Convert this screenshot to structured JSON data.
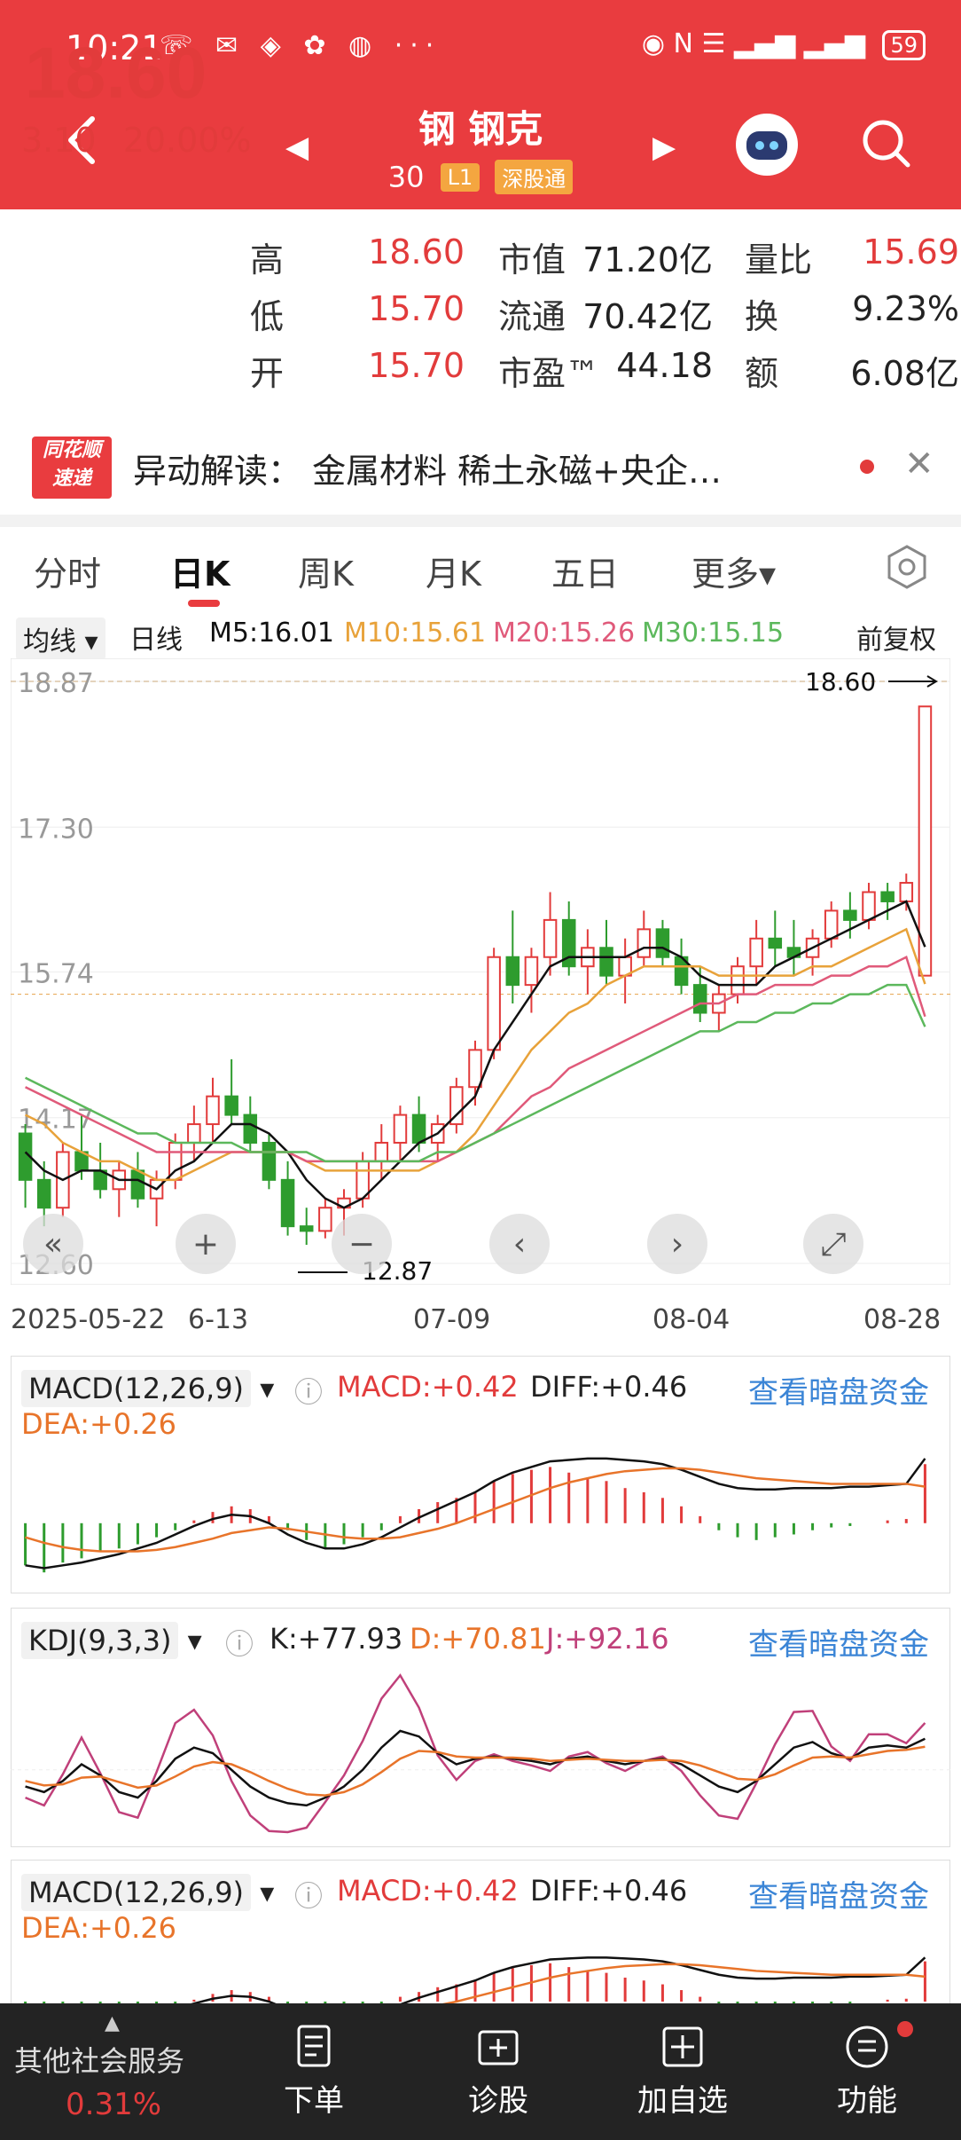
{
  "status": {
    "time": "10:21",
    "icons": "☏ ✉ ◈ ✿ ◍ ···",
    "right_icons": "◉ N ☰ ▂▄▆ ▂▄▆",
    "battery": "59"
  },
  "header": {
    "name": "钢 钢克",
    "code": "30  ",
    "tag1": "L1",
    "tag2": "深股通"
  },
  "quote": {
    "price": "18.60",
    "change": "3.10",
    "change_pct": "20.00%",
    "high_label": "高",
    "high": "18.60",
    "low_label": "低",
    "low": "15.70",
    "open_label": "开",
    "open": "15.70",
    "mcap_label": "市值",
    "mcap": "71.20亿",
    "float_label": "流通",
    "float": "70.42亿",
    "pe_label": "市盈™",
    "pe": "44.18",
    "vr_label": "量比",
    "vr": "15.69",
    "turn_label": "换",
    "turn": "9.23%",
    "amt_label": "额",
    "amt": "6.08亿"
  },
  "news": {
    "logo_l1": "同花顺",
    "logo_l2": "速递",
    "text": "异动解读：  金属材料     稀土永磁+央企…",
    "close": "✕"
  },
  "tabs": [
    "分时",
    "日K",
    "周K",
    "月K",
    "五日",
    "更多▾"
  ],
  "ma": {
    "mode": "均线 ▾",
    "period": "日线",
    "m5": "M5:16.01",
    "m10": "M10:15.61",
    "m20": "M20:15.26",
    "m30": "M30:15.15",
    "adjust": "前复权"
  },
  "chart_data": {
    "type": "candlestick",
    "y_ticks": [
      "18.87",
      "17.30",
      "15.74",
      "14.17",
      "12.60"
    ],
    "x_ticks": [
      "2025-05-22",
      "6-13",
      "07-09",
      "08-04",
      "08-28"
    ],
    "last_label": "18.60",
    "low_label": "12.87",
    "ohlc": [
      [
        14.0,
        14.1,
        13.2,
        13.5
      ],
      [
        13.5,
        13.7,
        13.0,
        13.2
      ],
      [
        13.2,
        13.9,
        13.1,
        13.8
      ],
      [
        13.8,
        14.2,
        13.5,
        13.6
      ],
      [
        13.6,
        13.9,
        13.3,
        13.4
      ],
      [
        13.4,
        13.7,
        13.1,
        13.6
      ],
      [
        13.6,
        13.8,
        13.2,
        13.3
      ],
      [
        13.3,
        13.6,
        13.0,
        13.5
      ],
      [
        13.5,
        14.0,
        13.4,
        13.9
      ],
      [
        13.9,
        14.3,
        13.7,
        14.1
      ],
      [
        14.1,
        14.6,
        13.9,
        14.4
      ],
      [
        14.4,
        14.8,
        14.1,
        14.2
      ],
      [
        14.2,
        14.4,
        13.8,
        13.9
      ],
      [
        13.9,
        14.0,
        13.4,
        13.5
      ],
      [
        13.5,
        13.7,
        12.9,
        13.0
      ],
      [
        13.0,
        13.2,
        12.8,
        12.95
      ],
      [
        12.95,
        13.3,
        12.87,
        13.2
      ],
      [
        13.2,
        13.4,
        12.9,
        13.3
      ],
      [
        13.3,
        13.8,
        13.2,
        13.7
      ],
      [
        13.7,
        14.1,
        13.5,
        13.9
      ],
      [
        13.9,
        14.3,
        13.7,
        14.2
      ],
      [
        14.2,
        14.4,
        13.8,
        13.9
      ],
      [
        13.9,
        14.2,
        13.7,
        14.1
      ],
      [
        14.1,
        14.6,
        14.0,
        14.5
      ],
      [
        14.5,
        15.0,
        14.3,
        14.9
      ],
      [
        14.9,
        16.0,
        14.8,
        15.9
      ],
      [
        15.9,
        16.4,
        15.4,
        15.6
      ],
      [
        15.6,
        16.0,
        15.3,
        15.9
      ],
      [
        15.9,
        16.6,
        15.7,
        16.3
      ],
      [
        16.3,
        16.5,
        15.7,
        15.8
      ],
      [
        15.8,
        16.2,
        15.5,
        16.0
      ],
      [
        16.0,
        16.3,
        15.6,
        15.7
      ],
      [
        15.7,
        16.1,
        15.4,
        15.9
      ],
      [
        15.9,
        16.4,
        15.8,
        16.2
      ],
      [
        16.2,
        16.3,
        15.8,
        15.9
      ],
      [
        15.9,
        16.1,
        15.5,
        15.6
      ],
      [
        15.6,
        15.8,
        15.2,
        15.3
      ],
      [
        15.3,
        15.6,
        15.1,
        15.5
      ],
      [
        15.5,
        15.9,
        15.4,
        15.8
      ],
      [
        15.8,
        16.3,
        15.6,
        16.1
      ],
      [
        16.1,
        16.4,
        15.8,
        16.0
      ],
      [
        16.0,
        16.3,
        15.7,
        15.9
      ],
      [
        15.9,
        16.2,
        15.7,
        16.1
      ],
      [
        16.1,
        16.5,
        16.0,
        16.4
      ],
      [
        16.4,
        16.6,
        16.1,
        16.3
      ],
      [
        16.3,
        16.7,
        16.2,
        16.6
      ],
      [
        16.6,
        16.7,
        16.3,
        16.5
      ],
      [
        16.5,
        16.8,
        16.4,
        16.7
      ],
      [
        15.7,
        18.6,
        15.7,
        18.6
      ]
    ],
    "ma5": [
      13.8,
      13.6,
      13.5,
      13.6,
      13.6,
      13.5,
      13.5,
      13.4,
      13.6,
      13.7,
      13.9,
      14.1,
      14.1,
      14.0,
      13.8,
      13.5,
      13.3,
      13.2,
      13.3,
      13.5,
      13.7,
      13.9,
      14.0,
      14.2,
      14.4,
      14.9,
      15.2,
      15.5,
      15.8,
      15.9,
      15.9,
      15.9,
      15.9,
      16.0,
      16.0,
      15.9,
      15.7,
      15.6,
      15.6,
      15.6,
      15.8,
      15.9,
      16.0,
      16.1,
      16.2,
      16.3,
      16.4,
      16.5,
      16.01
    ],
    "ma10": [
      14.2,
      14.1,
      13.9,
      13.8,
      13.7,
      13.7,
      13.6,
      13.5,
      13.5,
      13.6,
      13.7,
      13.8,
      13.8,
      13.8,
      13.8,
      13.7,
      13.6,
      13.6,
      13.6,
      13.6,
      13.6,
      13.6,
      13.7,
      13.8,
      14.0,
      14.3,
      14.6,
      14.9,
      15.1,
      15.3,
      15.4,
      15.6,
      15.7,
      15.8,
      15.8,
      15.8,
      15.8,
      15.7,
      15.7,
      15.7,
      15.7,
      15.7,
      15.8,
      15.8,
      15.9,
      16.0,
      16.1,
      16.2,
      15.61
    ],
    "ma20": [
      14.5,
      14.4,
      14.3,
      14.2,
      14.1,
      14.0,
      13.9,
      13.8,
      13.8,
      13.8,
      13.8,
      13.8,
      13.8,
      13.8,
      13.8,
      13.7,
      13.7,
      13.7,
      13.7,
      13.7,
      13.7,
      13.7,
      13.7,
      13.8,
      13.9,
      14.0,
      14.2,
      14.4,
      14.5,
      14.7,
      14.8,
      14.9,
      15.0,
      15.1,
      15.2,
      15.3,
      15.4,
      15.4,
      15.5,
      15.5,
      15.6,
      15.6,
      15.6,
      15.7,
      15.7,
      15.8,
      15.8,
      15.9,
      15.26
    ],
    "ma30": [
      14.6,
      14.5,
      14.4,
      14.3,
      14.2,
      14.1,
      14.0,
      14.0,
      13.9,
      13.9,
      13.9,
      13.9,
      13.8,
      13.8,
      13.8,
      13.8,
      13.7,
      13.7,
      13.7,
      13.7,
      13.7,
      13.7,
      13.8,
      13.8,
      13.9,
      14.0,
      14.1,
      14.2,
      14.3,
      14.4,
      14.5,
      14.6,
      14.7,
      14.8,
      14.9,
      15.0,
      15.1,
      15.1,
      15.2,
      15.2,
      15.3,
      15.3,
      15.4,
      15.4,
      15.5,
      15.5,
      15.6,
      15.6,
      15.15
    ],
    "ylim": [
      12.6,
      18.87
    ]
  },
  "macd1": {
    "title": "MACD(12,26,9)",
    "macd": "MACD:+0.42",
    "diff": "DIFF:+0.46",
    "dea": "DEA:+0.26",
    "link": "查看暗盘资金"
  },
  "kdj": {
    "title": "KDJ(9,3,3)",
    "k": "K:+77.93",
    "d": "D:+70.81",
    "j": "J:+92.16",
    "link": "查看暗盘资金"
  },
  "macd2": {
    "title": "MACD(12,26,9)",
    "macd": "MACD:+0.42",
    "diff": "DIFF:+0.46",
    "dea": "DEA:+0.26",
    "link": "查看暗盘资金"
  },
  "macd_series": {
    "hist": [
      -0.3,
      -0.35,
      -0.28,
      -0.25,
      -0.2,
      -0.18,
      -0.15,
      -0.1,
      -0.05,
      0.02,
      0.08,
      0.12,
      0.1,
      0.05,
      -0.05,
      -0.12,
      -0.18,
      -0.15,
      -0.1,
      -0.05,
      0.05,
      0.1,
      0.15,
      0.18,
      0.22,
      0.3,
      0.35,
      0.38,
      0.4,
      0.36,
      0.32,
      0.3,
      0.25,
      0.22,
      0.18,
      0.12,
      0.05,
      -0.05,
      -0.1,
      -0.12,
      -0.1,
      -0.08,
      -0.05,
      -0.03,
      -0.02,
      0.0,
      0.02,
      0.03,
      0.42
    ],
    "diff": [
      -0.3,
      -0.32,
      -0.3,
      -0.28,
      -0.25,
      -0.22,
      -0.18,
      -0.14,
      -0.08,
      -0.02,
      0.03,
      0.06,
      0.05,
      0.0,
      -0.08,
      -0.14,
      -0.18,
      -0.18,
      -0.15,
      -0.1,
      -0.03,
      0.04,
      0.1,
      0.16,
      0.22,
      0.3,
      0.36,
      0.4,
      0.44,
      0.45,
      0.46,
      0.46,
      0.45,
      0.44,
      0.42,
      0.38,
      0.33,
      0.28,
      0.25,
      0.24,
      0.24,
      0.25,
      0.25,
      0.25,
      0.26,
      0.26,
      0.27,
      0.28,
      0.46
    ],
    "dea": [
      -0.1,
      -0.14,
      -0.17,
      -0.19,
      -0.2,
      -0.2,
      -0.2,
      -0.19,
      -0.17,
      -0.14,
      -0.11,
      -0.07,
      -0.05,
      -0.03,
      -0.04,
      -0.06,
      -0.08,
      -0.1,
      -0.11,
      -0.11,
      -0.1,
      -0.07,
      -0.04,
      0.0,
      0.05,
      0.1,
      0.15,
      0.2,
      0.25,
      0.29,
      0.32,
      0.35,
      0.37,
      0.38,
      0.39,
      0.39,
      0.38,
      0.36,
      0.34,
      0.32,
      0.31,
      0.3,
      0.29,
      0.28,
      0.28,
      0.28,
      0.28,
      0.28,
      0.26
    ]
  },
  "kdj_series": {
    "k": [
      35,
      30,
      40,
      55,
      45,
      30,
      25,
      40,
      60,
      70,
      65,
      50,
      35,
      25,
      20,
      18,
      25,
      35,
      50,
      70,
      85,
      80,
      65,
      55,
      60,
      62,
      60,
      58,
      55,
      60,
      62,
      58,
      55,
      58,
      60,
      55,
      45,
      35,
      30,
      40,
      55,
      70,
      75,
      65,
      60,
      70,
      72,
      70,
      77.93
    ],
    "d": [
      40,
      36,
      37,
      43,
      44,
      39,
      34,
      36,
      44,
      53,
      57,
      55,
      48,
      40,
      33,
      28,
      27,
      30,
      37,
      48,
      60,
      67,
      66,
      62,
      61,
      61,
      61,
      60,
      58,
      59,
      60,
      59,
      58,
      58,
      59,
      58,
      54,
      48,
      42,
      41,
      46,
      54,
      61,
      62,
      61,
      64,
      67,
      68,
      70.81
    ],
    "j": [
      25,
      18,
      46,
      79,
      47,
      12,
      7,
      48,
      92,
      104,
      81,
      40,
      9,
      -5,
      -6,
      -2,
      21,
      45,
      76,
      114,
      135,
      106,
      63,
      41,
      58,
      64,
      58,
      54,
      49,
      62,
      66,
      56,
      49,
      58,
      62,
      49,
      27,
      9,
      6,
      38,
      73,
      102,
      103,
      71,
      58,
      82,
      82,
      74,
      92.16
    ]
  },
  "bottom": {
    "group": "其他社会服务",
    "group_pct": "0.31%",
    "b1": "下单",
    "b2": "诊股",
    "b3": "加自选",
    "b4": "功能"
  },
  "colors": {
    "up": "#e23b3b",
    "down": "#2e9c2e",
    "ma5": "#111111",
    "ma10": "#e8a23a",
    "ma20": "#e05a7a",
    "ma30": "#5cb85c",
    "header": "#e93c3f"
  }
}
